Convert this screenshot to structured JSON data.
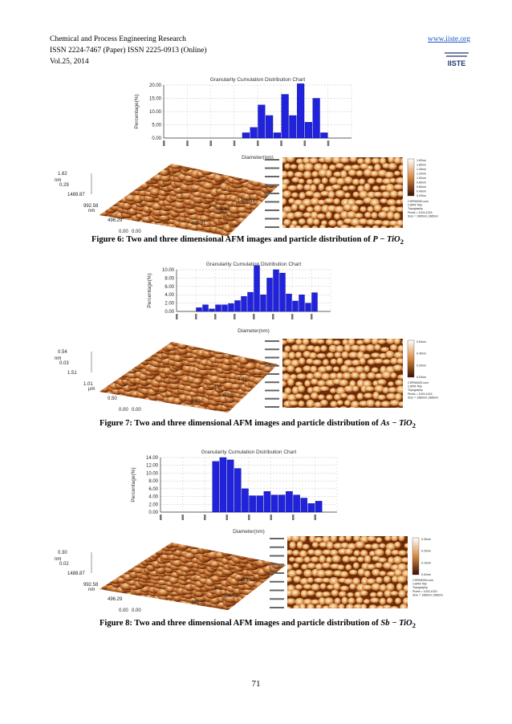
{
  "header": {
    "journal": "Chemical and Process Engineering Research",
    "issn": "ISSN 2224-7467 (Paper) ISSN 2225-0913 (Online)",
    "volume": "Vol.25, 2014",
    "url": "www.iiste.org",
    "logo_text": "IISTE"
  },
  "figures": [
    {
      "caption_prefix": "Figure 6: Two and three dimensional AFM images and particle distribution of ",
      "caption_formula": "P − TiO",
      "caption_sub": "2",
      "afm3d": {
        "z_labels": [
          "1.82",
          "nm",
          "0.29"
        ],
        "axis_labels": [
          "1489.87",
          "992.58",
          "nm",
          "496.29",
          "0.00",
          "0.00",
          "497.31",
          "nm",
          "994.63",
          "1491.94"
        ]
      },
      "afm2d": {
        "scale_labels": [
          "1.82nm",
          "1.60nm",
          "1.40nm",
          "1.20nm",
          "1.00nm",
          "0.80nm",
          "0.60nm",
          "0.40nm",
          "0.29nm"
        ],
        "info": [
          "CSPM4000.com",
          "CSPM Tide",
          "Topography",
          "Pixels = 1024,1024",
          "Size = 1985nm,1985nm"
        ]
      }
    },
    {
      "caption_prefix": "Figure 7: Two and three dimensional AFM images and particle distribution of ",
      "caption_formula": "As − TiO",
      "caption_sub": "2",
      "afm3d": {
        "z_labels": [
          "0.54",
          "nm",
          "0.03"
        ],
        "axis_labels": [
          "1.51",
          "1.01",
          "µm",
          "0.50",
          "0.00",
          "0.00",
          "0.50",
          "0.99",
          "µm",
          "1.49"
        ]
      },
      "afm2d": {
        "scale_labels": [
          "0.54nm",
          "0.40nm",
          "0.20nm",
          "0.03nm"
        ],
        "info": [
          "CSPM4000.com",
          "CSPM Tide",
          "Topography",
          "Pixels = 1024,1024",
          "Size = 1985nm,1985nm"
        ]
      }
    },
    {
      "caption_prefix": "Figure 8: Two and three dimensional AFM images and particle distribution of ",
      "caption_formula": "Sb − TiO",
      "caption_sub": "2",
      "afm3d": {
        "z_labels": [
          "0.30",
          "nm",
          "0.02"
        ],
        "axis_labels": [
          "1488.87",
          "992.58",
          "nm",
          "496.29",
          "0.00",
          "0.00",
          "499.37",
          "998.73",
          "nm",
          "1498.10"
        ]
      },
      "afm2d": {
        "scale_labels": [
          "0.30nm",
          "0.20nm",
          "0.10nm",
          "0.02nm"
        ],
        "info": [
          "CSPM4000.com",
          "CSPM Tide",
          "Topography",
          "Pixels = 1024,1024",
          "Size = 1985nm,1985nm"
        ]
      }
    }
  ],
  "chart_data": [
    {
      "type": "bar",
      "title": "Granularity Cumulation Distribution  Chart",
      "xlabel": "Diameter(nm)",
      "ylabel": "Percentage(%)",
      "ylim": [
        0,
        20
      ],
      "yticks": [
        "0.00",
        "5.00",
        "10.00",
        "15.00",
        "20.00"
      ],
      "x_slots": 24,
      "bar_start": 10,
      "values": [
        2.0,
        4.0,
        12.5,
        8.5,
        2.0,
        16.5,
        8.5,
        20.5,
        6.0,
        15.0,
        2.0
      ],
      "color": "#2222dd"
    },
    {
      "type": "bar",
      "title": "Granularity Cumulation Distribution  Chart",
      "xlabel": "Diameter(nm)",
      "ylabel": "Percentage(%)",
      "ylim": [
        0,
        10
      ],
      "yticks": [
        "0.00",
        "2.00",
        "4.00",
        "6.00",
        "8.00",
        "10.00"
      ],
      "x_slots": 24,
      "bar_start": 3,
      "values": [
        0.9,
        1.6,
        0.6,
        1.6,
        1.6,
        1.9,
        2.6,
        3.6,
        4.6,
        11.0,
        4.0,
        8.0,
        10.0,
        9.2,
        4.2,
        2.5,
        4.0,
        2.0,
        4.5
      ],
      "color": "#2222dd"
    },
    {
      "type": "bar",
      "title": "Granularity Cumulation Distribution  Chart",
      "xlabel": "Diameter(nm)",
      "ylabel": "Percentage(%)",
      "ylim": [
        0,
        14
      ],
      "yticks": [
        "0.00",
        "2.00",
        "4.00",
        "6.00",
        "8.00",
        "10.00",
        "12.00",
        "14.00"
      ],
      "x_slots": 24,
      "bar_start": 7,
      "values": [
        13.0,
        14.0,
        13.4,
        11.2,
        6.0,
        4.2,
        4.2,
        5.3,
        4.4,
        4.4,
        5.3,
        4.4,
        3.6,
        2.2,
        2.8
      ],
      "color": "#2222dd"
    }
  ],
  "page_number": "71"
}
